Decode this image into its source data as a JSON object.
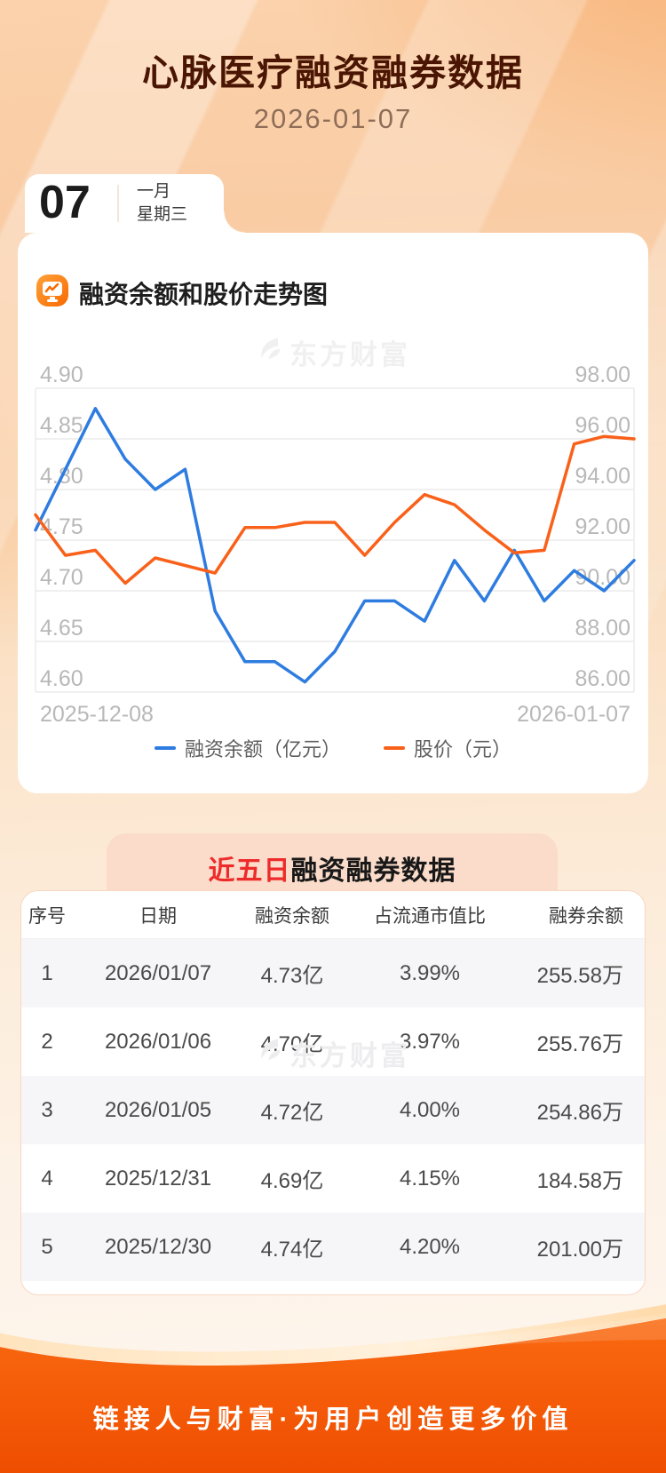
{
  "colors": {
    "accent_orange": "#F96A14",
    "line_blue": "#2E7CE0",
    "line_orange": "#F9611A",
    "title_brown": "#4A1502",
    "red_highlight": "#EE2B2B",
    "footer_orange": "#F65C07"
  },
  "icons": {
    "section_icon": "trend-monitor-icon",
    "watermark_icon": "eastmoney-swirl-logo"
  },
  "header": {
    "title": "心脉医疗融资融券数据",
    "date": "2026-01-07"
  },
  "date_card": {
    "day": "07",
    "month": "一月",
    "weekday": "星期三"
  },
  "chart_section": {
    "title": "融资余额和股价走势图"
  },
  "watermark": {
    "text": "东方财富"
  },
  "chart_data": {
    "type": "line",
    "dual_axis": true,
    "grid": true,
    "legend_position": "bottom",
    "x_axis": {
      "start_label": "2025-12-08",
      "end_label": "2026-01-07",
      "points": 21
    },
    "left_axis": {
      "title": "融资余额（亿元）",
      "min": 4.6,
      "max": 4.9,
      "step": 0.05,
      "ticks": [
        "4.90",
        "4.85",
        "4.80",
        "4.75",
        "4.70",
        "4.65",
        "4.60"
      ]
    },
    "right_axis": {
      "title": "股价（元）",
      "min": 86.0,
      "max": 98.0,
      "step": 2.0,
      "ticks": [
        "98.00",
        "96.00",
        "94.00",
        "92.00",
        "90.00",
        "88.00",
        "86.00"
      ]
    },
    "series": [
      {
        "name": "融资余额（亿元）",
        "axis": "left",
        "color": "#2E7CE0",
        "values": [
          4.76,
          4.82,
          4.88,
          4.83,
          4.8,
          4.82,
          4.68,
          4.63,
          4.63,
          4.61,
          4.64,
          4.69,
          4.69,
          4.67,
          4.73,
          4.69,
          4.74,
          4.69,
          4.72,
          4.7,
          4.73
        ]
      },
      {
        "name": "股价（元）",
        "axis": "right",
        "color": "#F9611A",
        "values": [
          93.0,
          91.4,
          91.6,
          90.3,
          91.3,
          91.0,
          90.7,
          92.5,
          92.5,
          92.7,
          92.7,
          91.4,
          92.7,
          93.8,
          93.4,
          92.4,
          91.5,
          91.6,
          95.8,
          96.1,
          96.0
        ]
      }
    ]
  },
  "table_section": {
    "title_highlight": "近五日",
    "title_rest": "融资融券数据",
    "columns": [
      "序号",
      "日期",
      "融资余额",
      "占流通市值比",
      "融券余额"
    ],
    "rows": [
      [
        "1",
        "2026/01/07",
        "4.73亿",
        "3.99%",
        "255.58万"
      ],
      [
        "2",
        "2026/01/06",
        "4.70亿",
        "3.97%",
        "255.76万"
      ],
      [
        "3",
        "2026/01/05",
        "4.72亿",
        "4.00%",
        "254.86万"
      ],
      [
        "4",
        "2025/12/31",
        "4.69亿",
        "4.15%",
        "184.58万"
      ],
      [
        "5",
        "2025/12/30",
        "4.74亿",
        "4.20%",
        "201.00万"
      ]
    ]
  },
  "footer": {
    "slogan": "链接人与财富·为用户创造更多价值"
  }
}
